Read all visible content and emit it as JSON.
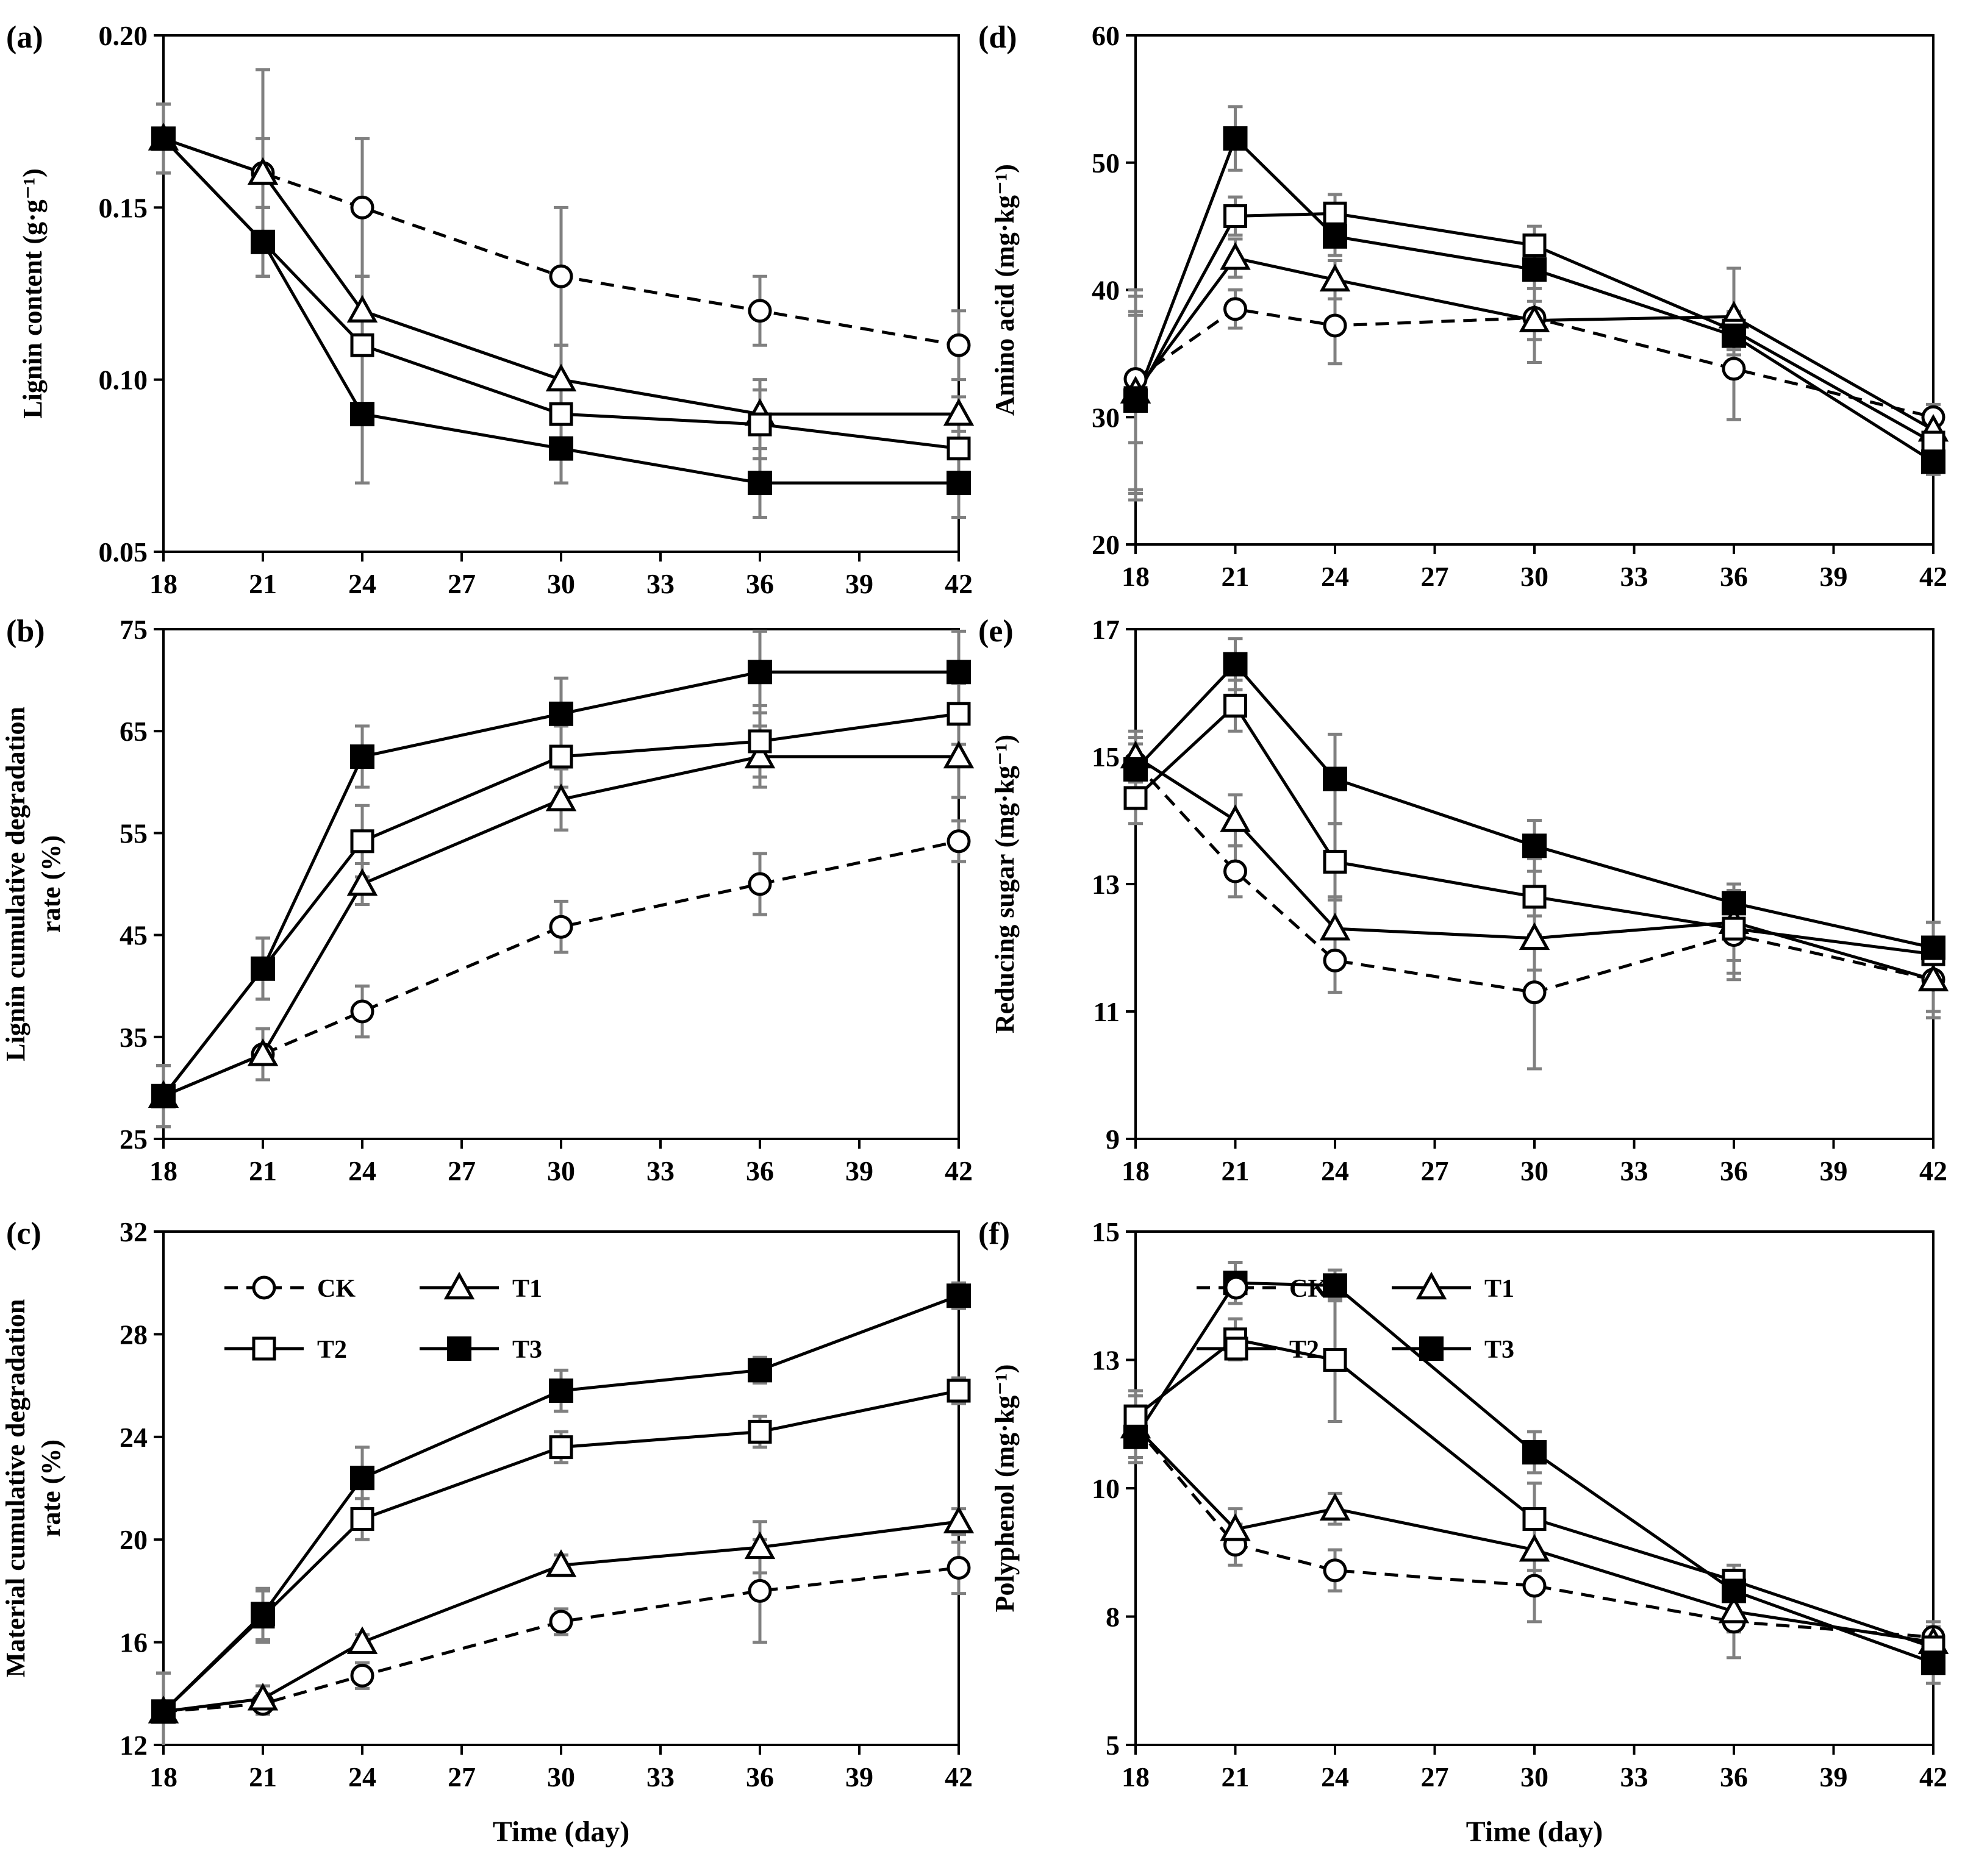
{
  "figure": {
    "xtitle": "Time (day)",
    "colors": {
      "line": "#000000",
      "errorbar": "#808080",
      "background": "#ffffff"
    }
  },
  "legend": {
    "items": [
      {
        "label": "CK",
        "marker": "circle-open",
        "dash": true
      },
      {
        "label": "T1",
        "marker": "triangle-open",
        "dash": false
      },
      {
        "label": "T2",
        "marker": "square-open",
        "dash": false
      },
      {
        "label": "T3",
        "marker": "square-filled",
        "dash": false
      }
    ]
  },
  "chart_data": [
    {
      "id": "a",
      "panel_label": "(a)",
      "type": "line",
      "ylabel": [
        "Lignin content (g·g⁻¹)"
      ],
      "ylim": [
        0.05,
        0.2
      ],
      "yticks": [
        "0.05",
        "0.10",
        "0.15",
        "0.20"
      ],
      "xlim": [
        18,
        42
      ],
      "xticks": [
        "18",
        "21",
        "24",
        "27",
        "30",
        "33",
        "36",
        "39",
        "42"
      ],
      "x": [
        18,
        21,
        24,
        30,
        36,
        42
      ],
      "show_xtitle": false,
      "show_legend": false,
      "series": [
        {
          "name": "CK",
          "values": [
            0.17,
            0.16,
            0.15,
            0.13,
            0.12,
            0.11
          ],
          "err": [
            0.01,
            0.03,
            0.02,
            0.02,
            0.01,
            0.01
          ]
        },
        {
          "name": "T1",
          "values": [
            0.17,
            0.16,
            0.12,
            0.1,
            0.09,
            0.09
          ],
          "err": [
            0.01,
            0.01,
            0.01,
            0.01,
            0.01,
            0.005
          ]
        },
        {
          "name": "T2",
          "values": [
            0.17,
            0.14,
            0.11,
            0.09,
            0.087,
            0.08
          ],
          "err": [
            0.01,
            0.01,
            0.02,
            0.01,
            0.01,
            0.01
          ]
        },
        {
          "name": "T3",
          "values": [
            0.17,
            0.14,
            0.09,
            0.08,
            0.07,
            0.07
          ],
          "err": [
            0.01,
            0.01,
            0.02,
            0.01,
            0.01,
            0.01
          ]
        }
      ]
    },
    {
      "id": "b",
      "panel_label": "(b)",
      "type": "line",
      "ylabel": [
        "Lignin cumulative degradation",
        "rate (%)"
      ],
      "ylim": [
        25,
        75
      ],
      "yticks": [
        "25",
        "35",
        "45",
        "55",
        "65",
        "75"
      ],
      "xlim": [
        18,
        42
      ],
      "xticks": [
        "18",
        "21",
        "24",
        "27",
        "30",
        "33",
        "36",
        "39",
        "42"
      ],
      "x": [
        18,
        21,
        24,
        30,
        36,
        42
      ],
      "show_xtitle": false,
      "show_legend": false,
      "series": [
        {
          "name": "CK",
          "values": [
            29.2,
            33.3,
            37.5,
            45.8,
            50,
            54.2
          ],
          "err": [
            3,
            2.5,
            2.5,
            2.5,
            3,
            2
          ]
        },
        {
          "name": "T1",
          "values": [
            29.2,
            33.3,
            50,
            58.3,
            62.5,
            62.5
          ],
          "err": [
            3,
            2.5,
            2,
            3,
            3,
            4
          ]
        },
        {
          "name": "T2",
          "values": [
            29.2,
            41.7,
            54.2,
            62.5,
            64,
            66.7
          ],
          "err": [
            3,
            3,
            3.5,
            3,
            3.5,
            3
          ]
        },
        {
          "name": "T3",
          "values": [
            29.2,
            41.7,
            62.5,
            66.7,
            70.8,
            70.8
          ],
          "err": [
            3,
            3,
            3,
            3.5,
            4,
            4
          ]
        }
      ]
    },
    {
      "id": "c",
      "panel_label": "(c)",
      "type": "line",
      "ylabel": [
        "Material cumulative degradation",
        "rate (%)"
      ],
      "ylim": [
        12,
        32
      ],
      "yticks": [
        "12",
        "16",
        "20",
        "24",
        "28",
        "32"
      ],
      "xlim": [
        18,
        42
      ],
      "xticks": [
        "18",
        "21",
        "24",
        "27",
        "30",
        "33",
        "36",
        "39",
        "42"
      ],
      "x": [
        18,
        21,
        24,
        30,
        36,
        42
      ],
      "show_xtitle": true,
      "show_legend": true,
      "series": [
        {
          "name": "CK",
          "values": [
            13.3,
            13.6,
            14.7,
            16.8,
            18.0,
            18.9
          ],
          "err": [
            1.5,
            0.4,
            0.5,
            0.5,
            2,
            1
          ]
        },
        {
          "name": "T1",
          "values": [
            13.3,
            13.8,
            16.0,
            19.0,
            19.7,
            20.7
          ],
          "err": [
            1.5,
            0.5,
            0.3,
            0.4,
            1,
            0.5
          ]
        },
        {
          "name": "T2",
          "values": [
            13.3,
            17.0,
            20.8,
            23.6,
            24.2,
            25.8
          ],
          "err": [
            1.5,
            1,
            0.8,
            0.6,
            0.6,
            0.5
          ]
        },
        {
          "name": "T3",
          "values": [
            13.3,
            17.1,
            22.4,
            25.8,
            26.6,
            29.5
          ],
          "err": [
            1.5,
            1,
            1.2,
            0.8,
            0.5,
            0.5
          ]
        }
      ]
    },
    {
      "id": "d",
      "panel_label": "(d)",
      "type": "line",
      "ylabel": [
        "Amino acid (mg·kg⁻¹)"
      ],
      "ylim": [
        20,
        60
      ],
      "yticks": [
        "20",
        "30",
        "40",
        "50",
        "60"
      ],
      "xlim": [
        18,
        42
      ],
      "xticks": [
        "18",
        "21",
        "24",
        "27",
        "30",
        "33",
        "36",
        "39",
        "42"
      ],
      "x": [
        18,
        21,
        24,
        30,
        36,
        42
      ],
      "show_xtitle": false,
      "show_legend": false,
      "series": [
        {
          "name": "CK",
          "values": [
            33,
            38.5,
            37.2,
            37.8,
            33.8,
            30
          ],
          "err": [
            5,
            1.5,
            3,
            3.5,
            4,
            1
          ]
        },
        {
          "name": "T1",
          "values": [
            32,
            42.5,
            40.8,
            37.6,
            37.9,
            29
          ],
          "err": [
            8,
            1.5,
            1.5,
            1.5,
            3.8,
            1
          ]
        },
        {
          "name": "T2",
          "values": [
            31.5,
            45.8,
            46,
            43.5,
            36.8,
            28
          ],
          "err": [
            8,
            1.5,
            1.5,
            1.5,
            1.5,
            1
          ]
        },
        {
          "name": "T3",
          "values": [
            31.3,
            51.9,
            44.2,
            41.6,
            36.4,
            26.5
          ],
          "err": [
            7,
            2.5,
            1.5,
            1.5,
            1.5,
            1
          ]
        }
      ]
    },
    {
      "id": "e",
      "panel_label": "(e)",
      "type": "line",
      "ylabel": [
        "Reducing sugar (mg·kg⁻¹)"
      ],
      "ylim": [
        9,
        17
      ],
      "yticks": [
        "9",
        "11",
        "13",
        "15",
        "17"
      ],
      "xlim": [
        18,
        42
      ],
      "xticks": [
        "18",
        "21",
        "24",
        "27",
        "30",
        "33",
        "36",
        "39",
        "42"
      ],
      "x": [
        18,
        21,
        24,
        30,
        36,
        42
      ],
      "show_xtitle": false,
      "show_legend": false,
      "series": [
        {
          "name": "CK",
          "values": [
            14.9,
            13.2,
            11.8,
            11.3,
            12.2,
            11.5
          ],
          "err": [
            0.4,
            0.4,
            0.5,
            1.2,
            0.7,
            0.6
          ]
        },
        {
          "name": "T1",
          "values": [
            15.0,
            14.0,
            12.3,
            12.15,
            12.4,
            11.5
          ],
          "err": [
            0.4,
            0.4,
            0.5,
            0.5,
            0.6,
            0.5
          ]
        },
        {
          "name": "T2",
          "values": [
            14.35,
            15.8,
            13.35,
            12.8,
            12.3,
            11.9
          ],
          "err": [
            0.4,
            0.4,
            0.6,
            0.6,
            0.7,
            0.5
          ]
        },
        {
          "name": "T3",
          "values": [
            14.8,
            16.45,
            14.65,
            13.6,
            12.7,
            12.0
          ],
          "err": [
            0.4,
            0.4,
            0.7,
            0.4,
            0.3,
            0.4
          ]
        }
      ]
    },
    {
      "id": "f",
      "panel_label": "(f)",
      "type": "line",
      "ylabel": [
        "Polyphenol (mg·kg⁻¹)"
      ],
      "ylim": [
        5,
        15
      ],
      "yticks": [
        "5",
        "8",
        "10",
        "13",
        "15"
      ],
      "ytick_values": [
        5,
        7.5,
        10,
        12.5,
        15
      ],
      "xlim": [
        18,
        42
      ],
      "xticks": [
        "18",
        "21",
        "24",
        "27",
        "30",
        "33",
        "36",
        "39",
        "42"
      ],
      "x": [
        18,
        21,
        24,
        30,
        36,
        42
      ],
      "show_xtitle": true,
      "show_legend": true,
      "series": [
        {
          "name": "CK",
          "values": [
            11.2,
            8.9,
            8.4,
            8.1,
            7.4,
            7.1
          ],
          "err": [
            0.6,
            0.4,
            0.4,
            0.7,
            0.7,
            0.3
          ]
        },
        {
          "name": "T1",
          "values": [
            11.2,
            9.2,
            9.6,
            8.8,
            7.6,
            7.0
          ],
          "err": [
            0.6,
            0.4,
            0.3,
            0.4,
            0.4,
            0.3
          ]
        },
        {
          "name": "T2",
          "values": [
            11.4,
            12.9,
            12.5,
            9.4,
            8.2,
            6.9
          ],
          "err": [
            0.5,
            0.4,
            1.2,
            0.7,
            0.3,
            0.4
          ]
        },
        {
          "name": "T3",
          "values": [
            11.0,
            14.0,
            13.95,
            10.7,
            8.0,
            6.6
          ],
          "err": [
            0.5,
            0.4,
            0.3,
            0.4,
            0.4,
            0.4
          ]
        }
      ]
    }
  ]
}
